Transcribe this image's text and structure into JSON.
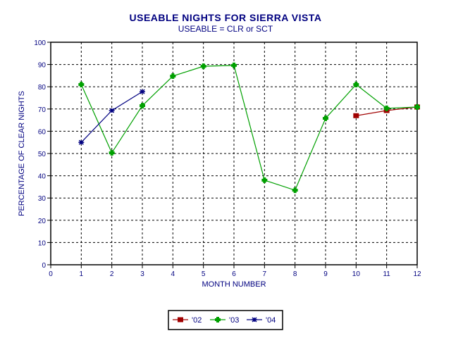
{
  "chart_data": {
    "type": "line",
    "title": "USEABLE NIGHTS FOR SIERRA VISTA",
    "subtitle": "USEABLE = CLR or SCT",
    "xlabel": "MONTH NUMBER",
    "ylabel": "PERCENTAGE OF CLEAR NIGHTS",
    "xlim": [
      0,
      12
    ],
    "ylim": [
      0,
      100
    ],
    "x_ticks": [
      0,
      1,
      2,
      3,
      4,
      5,
      6,
      7,
      8,
      9,
      10,
      11,
      12
    ],
    "y_ticks": [
      0,
      10,
      20,
      30,
      40,
      50,
      60,
      70,
      80,
      90,
      100
    ],
    "grid": true,
    "legend_position": "bottom",
    "series": [
      {
        "name": "'02",
        "color": "#a00000",
        "marker": "square",
        "x": [
          10,
          11,
          12
        ],
        "values": [
          67.0,
          69.3,
          70.9
        ]
      },
      {
        "name": "'03",
        "color": "#00a000",
        "marker": "plus",
        "x": [
          1,
          2,
          3,
          4,
          5,
          6,
          7,
          8,
          9,
          10,
          11,
          12
        ],
        "values": [
          81.0,
          50.3,
          71.5,
          84.8,
          89.2,
          89.6,
          38.0,
          33.5,
          65.8,
          81.0,
          70.3,
          70.9
        ]
      },
      {
        "name": "'04",
        "color": "#000080",
        "marker": "asterisk",
        "x": [
          1,
          2,
          3
        ],
        "values": [
          55.0,
          69.3,
          77.8
        ]
      }
    ]
  }
}
